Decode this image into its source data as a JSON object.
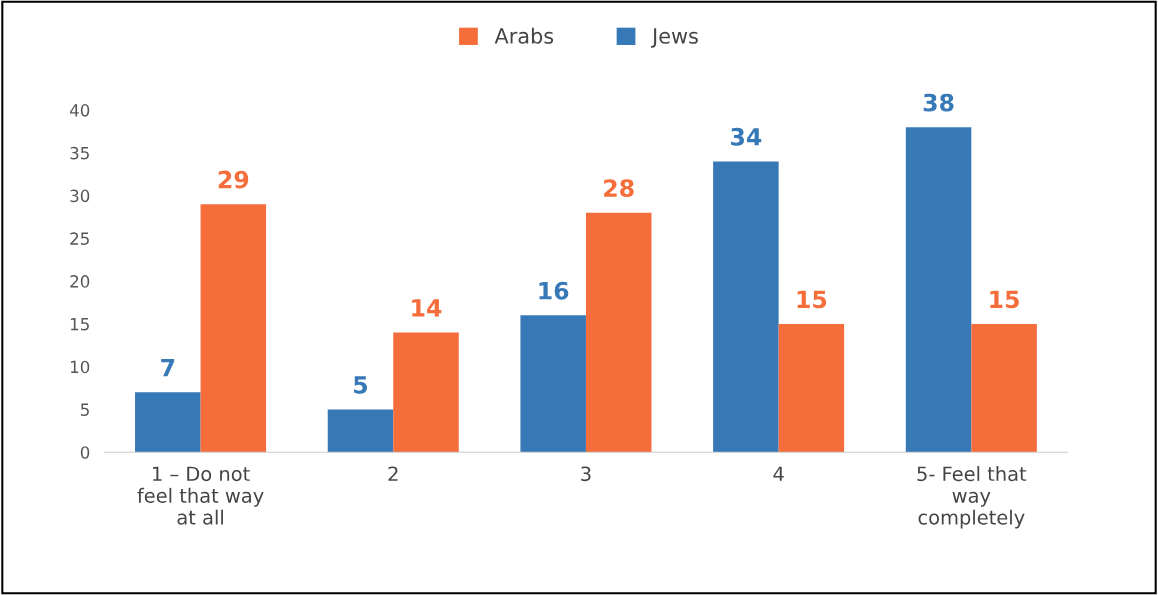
{
  "chart_data": {
    "type": "bar",
    "categories": [
      "1 – Do not\nfeel that way\nat all",
      "2",
      "3",
      "4",
      "5- Feel that\nway\ncompletely"
    ],
    "series": [
      {
        "name": "Jews",
        "color": "#3778b7",
        "values": [
          7,
          5,
          16,
          34,
          38
        ]
      },
      {
        "name": "Arabs",
        "color": "#f46d3b",
        "values": [
          29,
          14,
          28,
          15,
          15
        ]
      }
    ],
    "ylim": [
      0,
      40
    ],
    "yticks": [
      0,
      5,
      10,
      15,
      20,
      25,
      30,
      35,
      40
    ],
    "data_labels": true,
    "legend": "top",
    "grid": false
  }
}
